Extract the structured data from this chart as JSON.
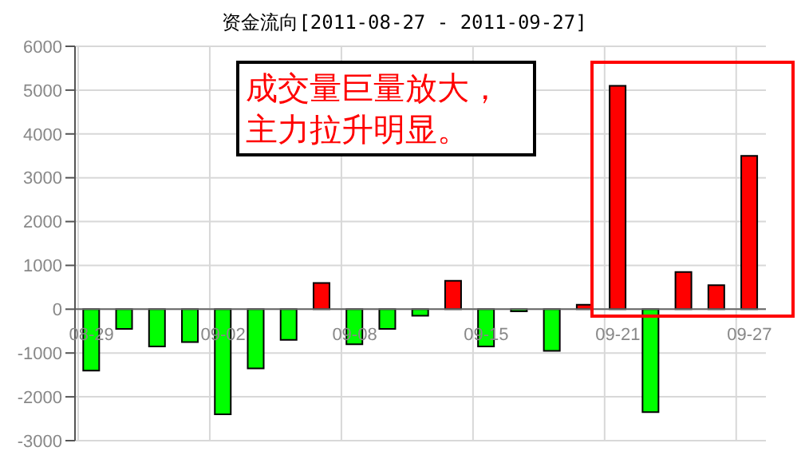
{
  "chart_data": {
    "type": "bar",
    "title": "资金流向[2011-08-27 - 2011-09-27]",
    "categories": [
      "08-29",
      null,
      null,
      null,
      "09-02",
      null,
      null,
      null,
      "09-08",
      null,
      null,
      null,
      "09-15",
      null,
      null,
      null,
      "09-21",
      null,
      null,
      null,
      "09-27"
    ],
    "values": [
      -1400,
      -450,
      -850,
      -750,
      -2400,
      -1350,
      -700,
      600,
      -800,
      -450,
      -150,
      650,
      -850,
      -50,
      -950,
      100,
      5100,
      -2350,
      850,
      550,
      3500
    ],
    "colors": [
      "#00ff00",
      "#00ff00",
      "#00ff00",
      "#00ff00",
      "#00ff00",
      "#00ff00",
      "#00ff00",
      "#ff0000",
      "#00ff00",
      "#00ff00",
      "#00ff00",
      "#ff0000",
      "#00ff00",
      "#00ff00",
      "#00ff00",
      "#ff0000",
      "#ff0000",
      "#00ff00",
      "#ff0000",
      "#ff0000",
      "#ff0000"
    ],
    "ylim": [
      -3000,
      6000
    ],
    "yticks": [
      -3000,
      -2000,
      -1000,
      0,
      1000,
      2000,
      3000,
      4000,
      5000,
      6000
    ],
    "grid": true,
    "annotations": [
      "成交量巨量放大，主力拉升明显。"
    ]
  }
}
